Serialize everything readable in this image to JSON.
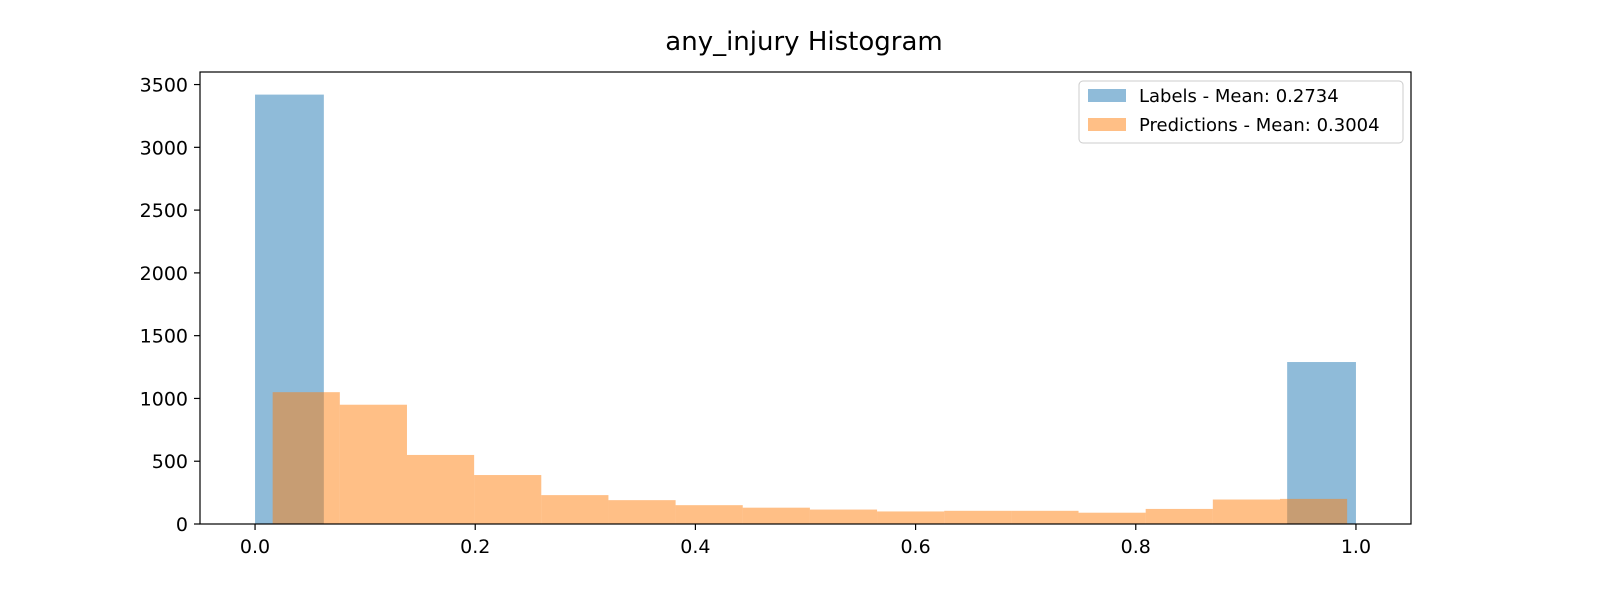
{
  "chart_data": {
    "type": "bar",
    "title": "any_injury Histogram",
    "xlabel": "",
    "ylabel": "",
    "xlim": [
      -0.05,
      1.05
    ],
    "ylim": [
      0,
      3600
    ],
    "x_ticks": [
      "0.0",
      "0.2",
      "0.4",
      "0.6",
      "0.8",
      "1.0"
    ],
    "y_ticks": [
      "0",
      "500",
      "1000",
      "1500",
      "2000",
      "2500",
      "3000",
      "3500"
    ],
    "grid": false,
    "legend_placement": "upper-right",
    "series": [
      {
        "name": "Labels - Mean: 0.2734",
        "color": "#1f77b4",
        "opacity": 0.5,
        "bin_edges": [
          0.0,
          0.0625,
          0.125,
          0.1875,
          0.25,
          0.3125,
          0.375,
          0.4375,
          0.5,
          0.5625,
          0.625,
          0.6875,
          0.75,
          0.8125,
          0.875,
          0.9375,
          1.0
        ],
        "values": [
          3420,
          0,
          0,
          0,
          0,
          0,
          0,
          0,
          0,
          0,
          0,
          0,
          0,
          0,
          0,
          1290
        ]
      },
      {
        "name": "Predictions - Mean: 0.3004",
        "color": "#ff7f0e",
        "opacity": 0.5,
        "bin_edges": [
          0.016,
          0.077,
          0.138,
          0.199,
          0.26,
          0.321,
          0.382,
          0.443,
          0.504,
          0.565,
          0.626,
          0.687,
          0.748,
          0.809,
          0.87,
          0.931,
          0.992
        ],
        "values": [
          1050,
          950,
          550,
          390,
          230,
          190,
          150,
          130,
          115,
          100,
          105,
          105,
          90,
          120,
          195,
          200
        ]
      }
    ]
  }
}
